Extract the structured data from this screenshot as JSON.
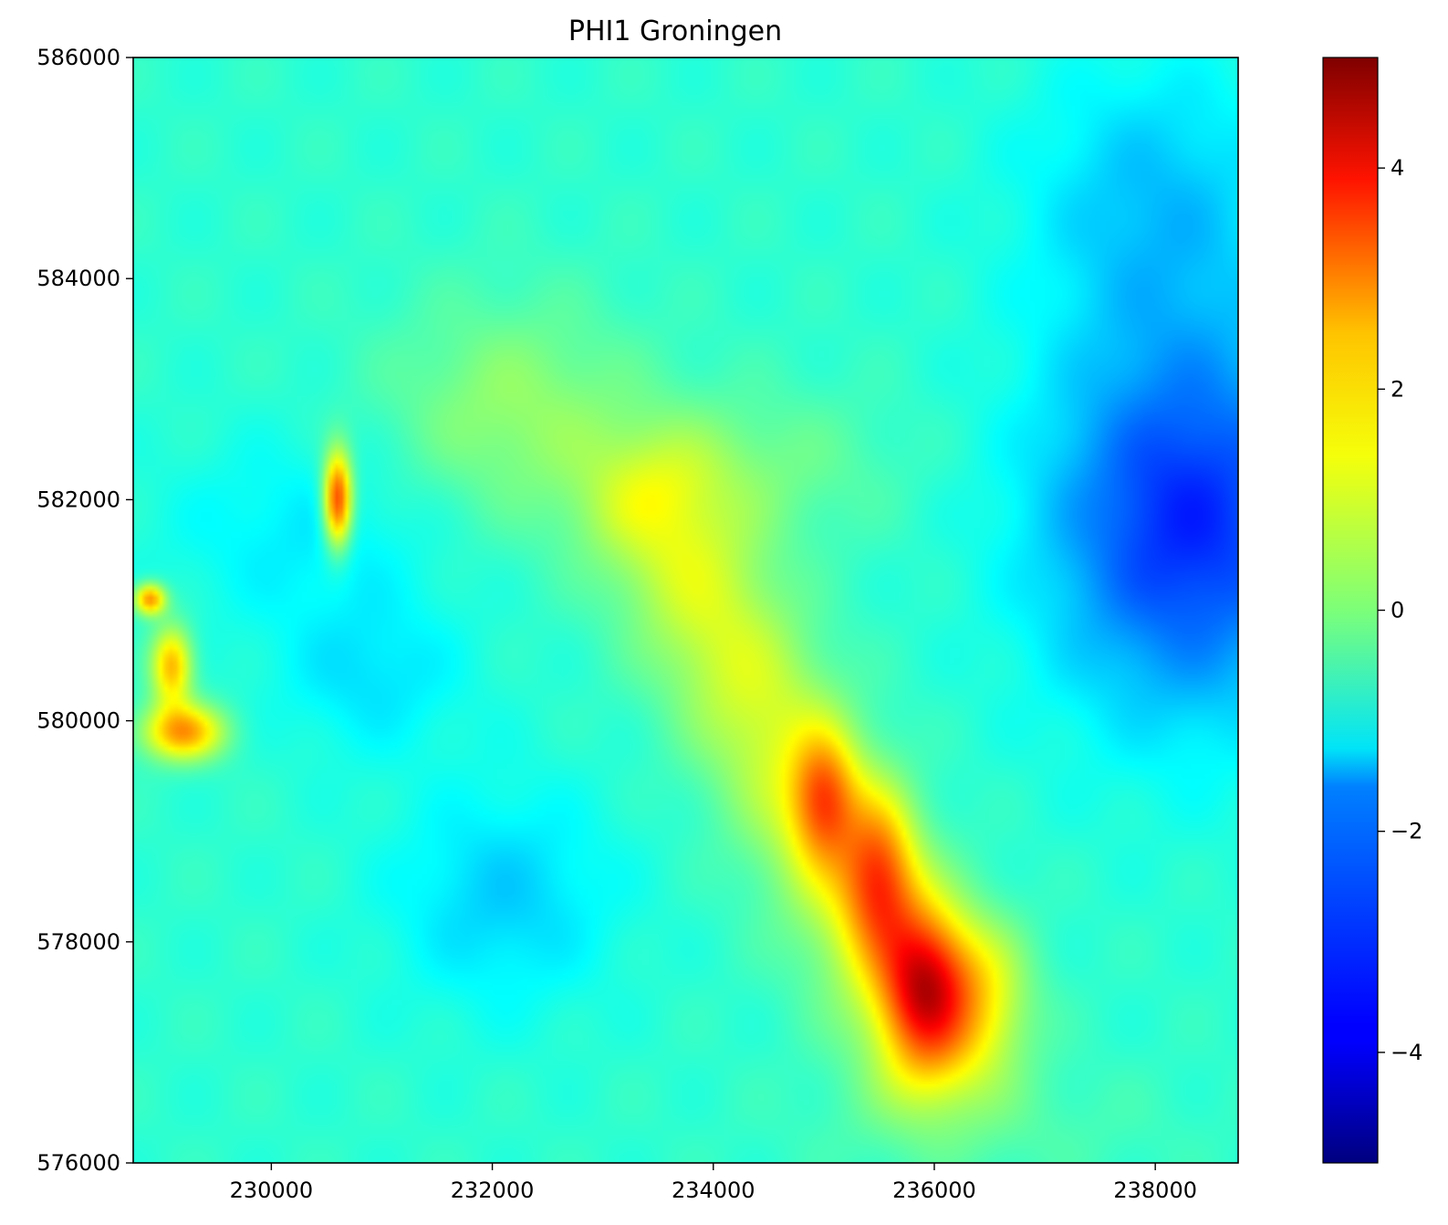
{
  "chart_data": {
    "type": "heatmap",
    "title": "PHI1 Groningen",
    "xlabel": "",
    "ylabel": "",
    "xlim": [
      228750,
      238750
    ],
    "ylim": [
      576000,
      586000
    ],
    "xticks": [
      230000,
      232000,
      234000,
      236000,
      238000
    ],
    "xtick_labels": [
      "230000",
      "232000",
      "234000",
      "236000",
      "238000"
    ],
    "yticks": [
      576000,
      578000,
      580000,
      582000,
      584000,
      586000
    ],
    "ytick_labels": [
      "576000",
      "578000",
      "580000",
      "582000",
      "584000",
      "586000"
    ],
    "colormap": "jet",
    "colorbar": {
      "vmin": -5,
      "vmax": 5,
      "ticks": [
        -4,
        -2,
        0,
        2,
        4
      ],
      "tick_labels": [
        "−4",
        "−2",
        "0",
        "2",
        "4"
      ]
    },
    "grid": false,
    "background_level": -0.8,
    "features": [
      {
        "kind": "ridge",
        "from": [
          233500,
          581900
        ],
        "to": [
          236000,
          577100
        ],
        "width": 500,
        "value": 1.7
      },
      {
        "kind": "peak",
        "x": 235000,
        "y": 579300,
        "sx": 200,
        "sy": 400,
        "value": 2.4
      },
      {
        "kind": "peak",
        "x": 235500,
        "y": 578600,
        "sx": 230,
        "sy": 500,
        "value": 2.6
      },
      {
        "kind": "peak",
        "x": 235900,
        "y": 577600,
        "sx": 260,
        "sy": 500,
        "value": 3.2
      },
      {
        "kind": "peak",
        "x": 236400,
        "y": 577600,
        "sx": 320,
        "sy": 450,
        "value": 1.5
      },
      {
        "kind": "peak",
        "x": 230600,
        "y": 582000,
        "sx": 90,
        "sy": 300,
        "value": 4.2
      },
      {
        "kind": "peak",
        "x": 229200,
        "y": 579900,
        "sx": 260,
        "sy": 180,
        "value": 3.0
      },
      {
        "kind": "peak",
        "x": 229100,
        "y": 580500,
        "sx": 130,
        "sy": 250,
        "value": 2.8
      },
      {
        "kind": "peak",
        "x": 228900,
        "y": 581100,
        "sx": 100,
        "sy": 100,
        "value": 3.2
      },
      {
        "kind": "peak",
        "x": 232200,
        "y": 582800,
        "sx": 800,
        "sy": 700,
        "value": 1.0
      },
      {
        "kind": "peak",
        "x": 234500,
        "y": 582300,
        "sx": 800,
        "sy": 500,
        "value": 0.6
      },
      {
        "kind": "peak",
        "x": 238300,
        "y": 581800,
        "sx": 900,
        "sy": 1200,
        "value": -2.6
      },
      {
        "kind": "peak",
        "x": 238000,
        "y": 584700,
        "sx": 800,
        "sy": 900,
        "value": -1.0
      },
      {
        "kind": "peak",
        "x": 230300,
        "y": 581700,
        "sx": 900,
        "sy": 600,
        "value": -0.6
      },
      {
        "kind": "peak",
        "x": 232100,
        "y": 578400,
        "sx": 700,
        "sy": 700,
        "value": -0.9
      },
      {
        "kind": "peak",
        "x": 230900,
        "y": 580400,
        "sx": 600,
        "sy": 500,
        "value": -0.7
      },
      {
        "kind": "peak",
        "x": 236500,
        "y": 576300,
        "sx": 1200,
        "sy": 400,
        "value": 0.3
      }
    ]
  }
}
